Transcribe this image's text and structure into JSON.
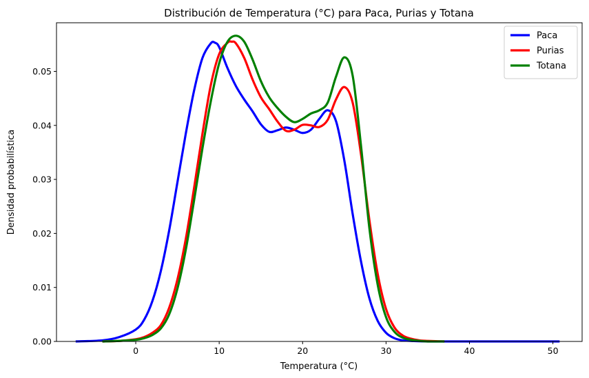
{
  "chart_data": {
    "type": "line",
    "title": "Distribución de Temperatura (°C) para Paca, Purias y Totana",
    "xlabel": "Temperatura (°C)",
    "ylabel": "Densidad probabilística",
    "xlim": [
      -9.5,
      53.5
    ],
    "ylim": [
      0,
      0.059
    ],
    "x_ticks": [
      0,
      10,
      20,
      30,
      40,
      50
    ],
    "x_tick_labels": [
      "0",
      "10",
      "20",
      "30",
      "40",
      "50"
    ],
    "y_ticks": [
      0,
      0.01,
      0.02,
      0.03,
      0.04,
      0.05
    ],
    "y_tick_labels": [
      "0.00",
      "0.01",
      "0.02",
      "0.03",
      "0.04",
      "0.05"
    ],
    "grid": false,
    "legend_position": "top-right",
    "series": [
      {
        "name": "Paca",
        "color": "#0000ff",
        "x": [
          -7.2,
          -4,
          -2,
          0,
          1,
          2,
          3,
          4,
          5,
          6,
          7,
          8,
          9,
          9.5,
          10,
          11,
          12,
          13,
          14,
          15,
          16,
          17,
          18,
          19,
          20,
          21,
          22,
          23,
          24,
          25,
          26,
          27,
          28,
          29,
          30,
          31,
          32,
          33,
          35,
          40,
          45,
          50.8
        ],
        "y": [
          0.0,
          0.0002,
          0.0008,
          0.0022,
          0.004,
          0.0075,
          0.013,
          0.0205,
          0.0295,
          0.0385,
          0.0465,
          0.0525,
          0.0552,
          0.0553,
          0.0545,
          0.0506,
          0.0473,
          0.0448,
          0.0426,
          0.0402,
          0.0388,
          0.0391,
          0.0396,
          0.0392,
          0.0386,
          0.0392,
          0.0412,
          0.0428,
          0.0408,
          0.0335,
          0.0236,
          0.0148,
          0.008,
          0.0038,
          0.0016,
          0.0006,
          0.0002,
          0.0001,
          0.0,
          0.0,
          0.0,
          0.0
        ]
      },
      {
        "name": "Purias",
        "color": "#ff0000",
        "x": [
          -4,
          -2,
          0,
          1,
          2,
          3,
          4,
          5,
          6,
          7,
          8,
          9,
          10,
          11,
          11.5,
          12,
          13,
          14,
          15,
          16,
          17,
          18,
          19,
          20,
          21,
          22,
          23,
          24,
          25,
          26,
          27,
          28,
          29,
          30,
          31,
          32,
          33,
          34,
          35,
          37
        ],
        "y": [
          0.0,
          0.0001,
          0.0004,
          0.0008,
          0.0016,
          0.003,
          0.0062,
          0.0115,
          0.019,
          0.0285,
          0.0385,
          0.0475,
          0.0532,
          0.0553,
          0.0555,
          0.0552,
          0.0525,
          0.0485,
          0.0452,
          0.043,
          0.0407,
          0.039,
          0.0392,
          0.0401,
          0.04,
          0.0397,
          0.041,
          0.0448,
          0.0471,
          0.0442,
          0.0346,
          0.0225,
          0.0125,
          0.006,
          0.0026,
          0.0011,
          0.0005,
          0.0002,
          0.0001,
          0.0
        ]
      },
      {
        "name": "Totana",
        "color": "#008000",
        "x": [
          -4,
          -2,
          0,
          1,
          2,
          3,
          4,
          5,
          6,
          7,
          8,
          9,
          10,
          11,
          12,
          13,
          14,
          15,
          16,
          17,
          18,
          19,
          20,
          21,
          22,
          23,
          24,
          25,
          26,
          27,
          28,
          29,
          30,
          31,
          32,
          33,
          34,
          35,
          37
        ],
        "y": [
          0.0,
          0.0001,
          0.0003,
          0.0006,
          0.0012,
          0.0024,
          0.005,
          0.0098,
          0.017,
          0.0262,
          0.0358,
          0.0445,
          0.0515,
          0.0555,
          0.0566,
          0.0555,
          0.0522,
          0.0482,
          0.0452,
          0.0432,
          0.0416,
          0.0406,
          0.0412,
          0.0422,
          0.0428,
          0.0442,
          0.049,
          0.0526,
          0.0492,
          0.0362,
          0.021,
          0.0105,
          0.0045,
          0.0018,
          0.0007,
          0.0003,
          0.0001,
          0.0,
          0.0
        ]
      }
    ]
  }
}
